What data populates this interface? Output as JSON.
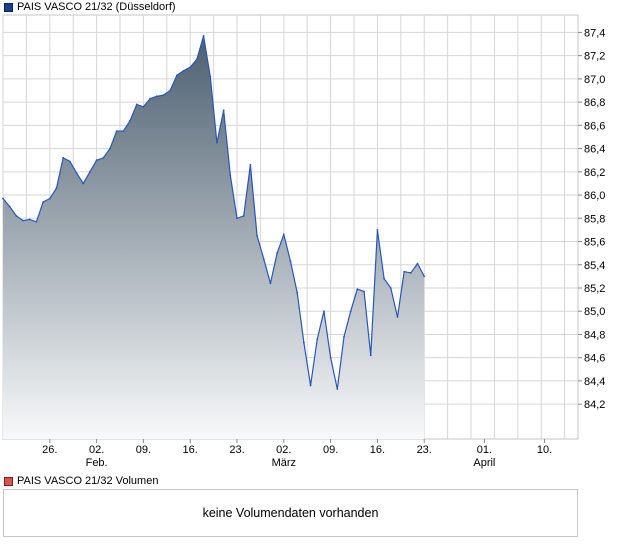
{
  "legend": {
    "price_label": "PAIS VASCO 21/32 (Düsseldorf)",
    "volume_label": "PAIS VASCO 21/32 Volumen"
  },
  "volume_panel": {
    "message": "keine Volumendaten vorhanden"
  },
  "colors": {
    "line": "#2a56b8",
    "fill_top": "#4d6070",
    "fill_bottom": "#f8f9fa",
    "grid": "#d6d6d6",
    "frame": "#c6c6c6"
  },
  "chart_data": {
    "type": "area",
    "ylim": [
      83.9,
      87.55
    ],
    "yticks": [
      84.2,
      84.4,
      84.6,
      84.8,
      85.0,
      85.2,
      85.4,
      85.6,
      85.8,
      86.0,
      86.2,
      86.4,
      86.6,
      86.8,
      87.0,
      87.2,
      87.4
    ],
    "ytick_labels": [
      "84,2",
      "84,4",
      "84,6",
      "84,8",
      "85,0",
      "85,2",
      "85,4",
      "85,6",
      "85,8",
      "86,0",
      "86,2",
      "86,4",
      "86,6",
      "86,8",
      "87,0",
      "87,2",
      "87,4"
    ],
    "xlim": [
      "2022-01-19",
      "2022-04-15"
    ],
    "xticks": [
      {
        "date": "2022-01-26",
        "label": "26."
      },
      {
        "date": "2022-02-02",
        "label": "02."
      },
      {
        "date": "2022-02-09",
        "label": "09."
      },
      {
        "date": "2022-02-16",
        "label": "16."
      },
      {
        "date": "2022-02-23",
        "label": "23."
      },
      {
        "date": "2022-03-02",
        "label": "02."
      },
      {
        "date": "2022-03-09",
        "label": "09."
      },
      {
        "date": "2022-03-16",
        "label": "16."
      },
      {
        "date": "2022-03-23",
        "label": "23."
      },
      {
        "date": "2022-04-01",
        "label": "01."
      },
      {
        "date": "2022-04-10",
        "label": "10."
      }
    ],
    "month_labels": [
      {
        "date": "2022-02-02",
        "label": "Feb."
      },
      {
        "date": "2022-03-02",
        "label": "März"
      },
      {
        "date": "2022-04-01",
        "label": "April"
      }
    ],
    "series": [
      {
        "values": [
          [
            "2022-01-19",
            85.97
          ],
          [
            "2022-01-20",
            85.9
          ],
          [
            "2022-01-21",
            85.82
          ],
          [
            "2022-01-22",
            85.78
          ],
          [
            "2022-01-23",
            85.79
          ],
          [
            "2022-01-24",
            85.77
          ],
          [
            "2022-01-25",
            85.94
          ],
          [
            "2022-01-26",
            85.97
          ],
          [
            "2022-01-27",
            86.06
          ],
          [
            "2022-01-28",
            86.32
          ],
          [
            "2022-01-29",
            86.29
          ],
          [
            "2022-01-30",
            86.19
          ],
          [
            "2022-01-31",
            86.1
          ],
          [
            "2022-02-01",
            86.2
          ],
          [
            "2022-02-02",
            86.3
          ],
          [
            "2022-02-03",
            86.32
          ],
          [
            "2022-02-04",
            86.4
          ],
          [
            "2022-02-05",
            86.55
          ],
          [
            "2022-02-06",
            86.55
          ],
          [
            "2022-02-07",
            86.64
          ],
          [
            "2022-02-08",
            86.78
          ],
          [
            "2022-02-09",
            86.76
          ],
          [
            "2022-02-10",
            86.83
          ],
          [
            "2022-02-11",
            86.85
          ],
          [
            "2022-02-12",
            86.86
          ],
          [
            "2022-02-13",
            86.9
          ],
          [
            "2022-02-14",
            87.03
          ],
          [
            "2022-02-15",
            87.07
          ],
          [
            "2022-02-16",
            87.1
          ],
          [
            "2022-02-17",
            87.17
          ],
          [
            "2022-02-18",
            87.37
          ],
          [
            "2022-02-19",
            87.02
          ],
          [
            "2022-02-20",
            86.45
          ],
          [
            "2022-02-21",
            86.73
          ],
          [
            "2022-02-22",
            86.17
          ],
          [
            "2022-02-23",
            85.8
          ],
          [
            "2022-02-24",
            85.82
          ],
          [
            "2022-02-25",
            86.26
          ],
          [
            "2022-02-26",
            85.65
          ],
          [
            "2022-02-27",
            85.45
          ],
          [
            "2022-02-28",
            85.24
          ],
          [
            "2022-03-01",
            85.5
          ],
          [
            "2022-03-02",
            85.66
          ],
          [
            "2022-03-03",
            85.43
          ],
          [
            "2022-03-04",
            85.16
          ],
          [
            "2022-03-05",
            84.73
          ],
          [
            "2022-03-06",
            84.36
          ],
          [
            "2022-03-07",
            84.76
          ],
          [
            "2022-03-08",
            85.0
          ],
          [
            "2022-03-09",
            84.6
          ],
          [
            "2022-03-10",
            84.33
          ],
          [
            "2022-03-11",
            84.78
          ],
          [
            "2022-03-12",
            85.0
          ],
          [
            "2022-03-13",
            85.19
          ],
          [
            "2022-03-14",
            85.17
          ],
          [
            "2022-03-15",
            84.62
          ],
          [
            "2022-03-16",
            85.7
          ],
          [
            "2022-03-17",
            85.28
          ],
          [
            "2022-03-18",
            85.2
          ],
          [
            "2022-03-19",
            84.95
          ],
          [
            "2022-03-20",
            85.34
          ],
          [
            "2022-03-21",
            85.33
          ],
          [
            "2022-03-22",
            85.41
          ],
          [
            "2022-03-23",
            85.3
          ]
        ]
      }
    ]
  }
}
